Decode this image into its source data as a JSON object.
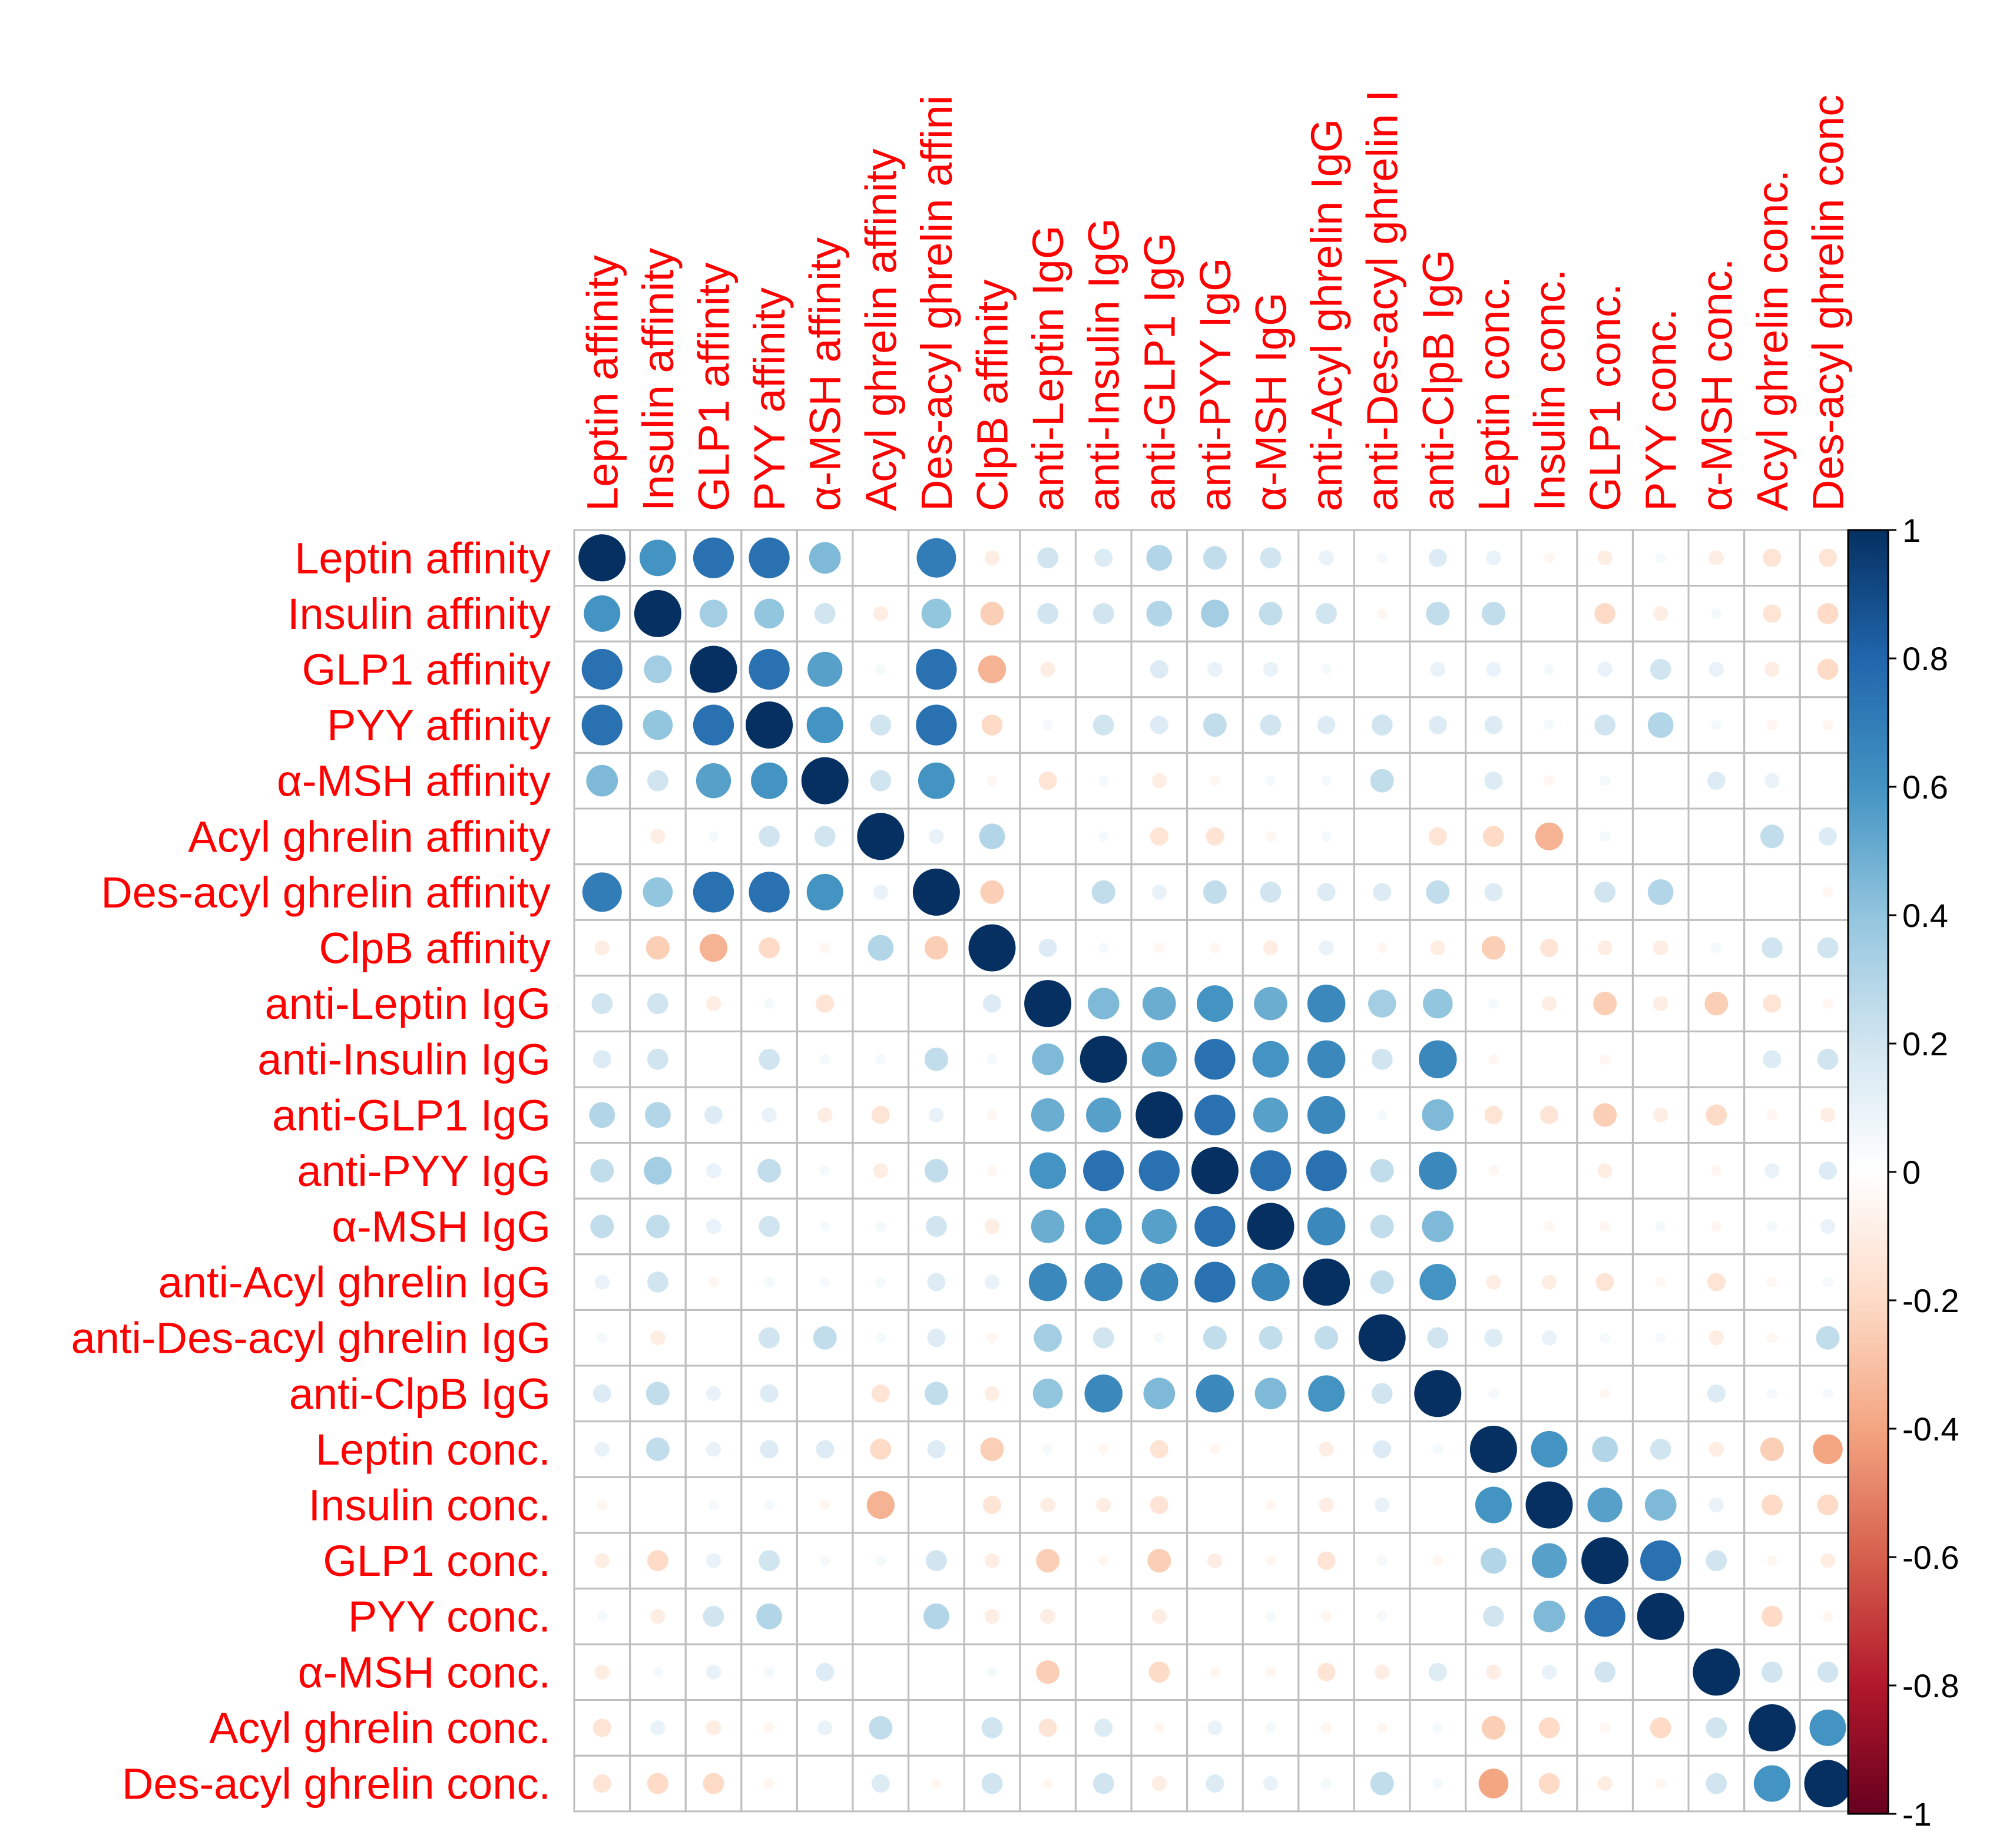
{
  "chart_data": {
    "type": "heatmap",
    "style": "correlation-circle-matrix",
    "variables": [
      "Leptin affinity",
      "Insulin affinity",
      "GLP1 affinity",
      "PYY affinity",
      "α-MSH affinity",
      "Acyl ghrelin affinity",
      "Des-acyl ghrelin affinity",
      "ClpB affinity",
      "anti-Leptin IgG",
      "anti-Insulin IgG",
      "anti-GLP1 IgG",
      "anti-PYY IgG",
      "α-MSH IgG",
      "anti-Acyl ghrelin IgG",
      "anti-Des-acyl ghrelin IgG",
      "anti-ClpB IgG",
      "Leptin conc.",
      "Insulin conc.",
      "GLP1 conc.",
      "PYY conc.",
      "α-MSH conc.",
      "Acyl ghrelin conc.",
      "Des-acyl ghrelin conc."
    ],
    "column_labels": [
      "Leptin affinity",
      "Insulin affinity",
      "GLP1 affinity",
      "PYY affinity",
      "α-MSH affinity",
      "Acyl ghrelin affinity",
      "Des-acyl ghrelin affini",
      "ClpB affinity",
      "anti-Leptin IgG",
      "anti-Insulin IgG",
      "anti-GLP1 IgG",
      "anti-PYY IgG",
      "α-MSH IgG",
      "anti-Acyl ghrelin IgG",
      "anti-Des-acyl ghrelin I",
      "anti-ClpB IgG",
      "Leptin conc.",
      "Insulin conc.",
      "GLP1 conc.",
      "PYY conc.",
      "α-MSH conc.",
      "Acyl ghrelin conc.",
      "Des-acyl ghrelin conc"
    ],
    "values": [
      [
        1,
        0.6,
        0.75,
        0.75,
        0.45,
        0,
        0.7,
        -0.1,
        0.2,
        0.15,
        0.3,
        0.25,
        0.2,
        0.1,
        0.05,
        0.15,
        0.1,
        -0.05,
        -0.1,
        0.05,
        -0.1,
        -0.15,
        -0.15
      ],
      [
        0.6,
        1,
        0.35,
        0.4,
        0.2,
        -0.1,
        0.4,
        -0.25,
        0.2,
        0.2,
        0.3,
        0.35,
        0.25,
        0.2,
        -0.05,
        0.25,
        0.25,
        0,
        -0.2,
        -0.1,
        0.05,
        -0.15,
        -0.2
      ],
      [
        0.75,
        0.35,
        1,
        0.75,
        0.55,
        0.05,
        0.75,
        -0.35,
        -0.1,
        0,
        0.15,
        0.1,
        0.1,
        0.05,
        0,
        0.1,
        0.1,
        0.05,
        0.1,
        0.2,
        0.1,
        -0.1,
        -0.2
      ],
      [
        0.75,
        0.4,
        0.75,
        1,
        0.6,
        0.2,
        0.75,
        -0.2,
        0.05,
        0.2,
        0.15,
        0.25,
        0.2,
        0.15,
        0.2,
        0.15,
        0.15,
        0.05,
        0.2,
        0.3,
        0.05,
        -0.05,
        -0.05
      ],
      [
        0.45,
        0.2,
        0.55,
        0.6,
        1,
        0.2,
        0.6,
        -0.05,
        -0.15,
        0.05,
        -0.1,
        -0.05,
        0.05,
        0.05,
        0.25,
        0,
        0.15,
        -0.05,
        0.05,
        0,
        0.15,
        0.1,
        0
      ],
      [
        0,
        -0.1,
        0.05,
        0.2,
        0.2,
        1,
        0.1,
        0.3,
        0,
        0.05,
        -0.15,
        -0.15,
        -0.05,
        0.05,
        0,
        -0.15,
        -0.2,
        -0.35,
        0.05,
        0,
        0,
        0.25,
        0.15
      ],
      [
        0.7,
        0.4,
        0.75,
        0.75,
        0.6,
        0.1,
        1,
        -0.25,
        0,
        0.25,
        0.1,
        0.25,
        0.2,
        0.15,
        0.15,
        0.25,
        0.15,
        0,
        0.2,
        0.3,
        0,
        0,
        -0.05
      ],
      [
        -0.1,
        -0.25,
        -0.35,
        -0.2,
        -0.05,
        0.3,
        -0.25,
        1,
        0.15,
        0.05,
        -0.05,
        -0.05,
        -0.1,
        0.1,
        -0.05,
        -0.1,
        -0.25,
        -0.15,
        -0.1,
        -0.1,
        0.05,
        0.2,
        0.2
      ],
      [
        0.2,
        0.2,
        -0.1,
        0.05,
        -0.15,
        0,
        0,
        0.15,
        1,
        0.45,
        0.5,
        0.6,
        0.5,
        0.65,
        0.35,
        0.4,
        0.05,
        -0.1,
        -0.25,
        -0.1,
        -0.25,
        -0.15,
        -0.05
      ],
      [
        0.15,
        0.2,
        0,
        0.2,
        0.05,
        0.05,
        0.25,
        0.05,
        0.45,
        1,
        0.55,
        0.75,
        0.6,
        0.65,
        0.2,
        0.65,
        -0.05,
        0,
        -0.05,
        0,
        0,
        0.15,
        0.2
      ],
      [
        0.3,
        0.3,
        0.15,
        0.1,
        -0.1,
        -0.15,
        0.1,
        -0.05,
        0.5,
        0.55,
        1,
        0.75,
        0.55,
        0.65,
        0.05,
        0.45,
        -0.15,
        -0.15,
        -0.25,
        -0.1,
        -0.2,
        -0.05,
        -0.1
      ],
      [
        0.25,
        0.35,
        0.1,
        0.25,
        0.05,
        -0.1,
        0.25,
        -0.05,
        0.6,
        0.75,
        0.75,
        1,
        0.75,
        0.75,
        0.25,
        0.65,
        -0.05,
        0,
        -0.1,
        0,
        -0.05,
        0.1,
        0.15
      ],
      [
        0.25,
        0.25,
        0.1,
        0.2,
        0.05,
        0.05,
        0.2,
        -0.1,
        0.5,
        0.6,
        0.55,
        0.75,
        1,
        0.65,
        0.25,
        0.45,
        0,
        -0.05,
        -0.05,
        0.05,
        -0.05,
        0.05,
        0.1
      ],
      [
        0.1,
        0.2,
        -0.05,
        0.05,
        0.05,
        0.05,
        0.15,
        0.1,
        0.65,
        0.65,
        0.65,
        0.75,
        0.65,
        1,
        0.25,
        0.6,
        -0.1,
        -0.1,
        -0.15,
        -0.05,
        -0.15,
        -0.05,
        0.05
      ],
      [
        0.05,
        -0.1,
        0,
        0.2,
        0.25,
        0.05,
        0.15,
        -0.05,
        0.35,
        0.2,
        0.05,
        0.25,
        0.25,
        0.25,
        1,
        0.2,
        0.15,
        0.1,
        0.05,
        0.05,
        -0.1,
        -0.05,
        0.25
      ],
      [
        0.15,
        0.25,
        0.1,
        0.15,
        0,
        -0.15,
        0.25,
        -0.1,
        0.4,
        0.65,
        0.45,
        0.65,
        0.45,
        0.6,
        0.2,
        1,
        0.05,
        0,
        -0.05,
        0,
        0.15,
        0.05,
        0.05
      ],
      [
        0.1,
        0.25,
        0.1,
        0.15,
        0.15,
        -0.2,
        0.15,
        -0.25,
        0.05,
        -0.05,
        -0.15,
        -0.05,
        0,
        -0.1,
        0.15,
        0.05,
        1,
        0.6,
        0.3,
        0.2,
        -0.1,
        -0.25,
        -0.4
      ],
      [
        -0.05,
        0,
        0.05,
        0.05,
        -0.05,
        -0.35,
        0,
        -0.15,
        -0.1,
        -0.1,
        -0.15,
        0,
        -0.05,
        -0.1,
        0.1,
        0,
        0.6,
        1,
        0.55,
        0.45,
        0.1,
        -0.2,
        -0.2
      ],
      [
        -0.1,
        -0.2,
        0.1,
        0.2,
        0.05,
        0.05,
        0.2,
        -0.1,
        -0.25,
        -0.05,
        -0.25,
        -0.1,
        -0.05,
        -0.15,
        0.05,
        -0.05,
        0.3,
        0.55,
        1,
        0.75,
        0.2,
        -0.05,
        -0.1
      ],
      [
        0.05,
        -0.1,
        0.2,
        0.3,
        0,
        0,
        0.3,
        -0.1,
        -0.1,
        0,
        -0.1,
        0,
        0.05,
        -0.05,
        0.05,
        0,
        0.2,
        0.45,
        0.75,
        1,
        0,
        -0.2,
        -0.05
      ],
      [
        -0.1,
        0.05,
        0.1,
        0.05,
        0.15,
        0,
        0,
        0.05,
        -0.25,
        0,
        -0.2,
        -0.05,
        -0.05,
        -0.15,
        -0.1,
        0.15,
        -0.1,
        0.1,
        0.2,
        0,
        1,
        0.2,
        0.2
      ],
      [
        -0.15,
        0.1,
        -0.1,
        -0.05,
        0.1,
        0.25,
        0,
        0.2,
        -0.15,
        0.15,
        -0.05,
        0.1,
        0.05,
        -0.05,
        -0.05,
        0.05,
        -0.25,
        -0.2,
        -0.05,
        -0.2,
        0.2,
        1,
        0.6
      ],
      [
        -0.15,
        -0.2,
        -0.2,
        -0.05,
        0,
        0.15,
        -0.05,
        0.2,
        -0.05,
        0.2,
        -0.1,
        0.15,
        0.1,
        0.05,
        0.25,
        0.05,
        -0.4,
        -0.2,
        -0.1,
        -0.05,
        0.2,
        0.6,
        1
      ]
    ],
    "colorbar": {
      "ticks": [
        "1",
        "0.8",
        "0.6",
        "0.4",
        "0.2",
        "0",
        "-0.2",
        "-0.4",
        "-0.6",
        "-0.8",
        "-1"
      ],
      "range": [
        -1,
        1
      ]
    },
    "label_color": "#ff0000",
    "grid_color": "#bebebe",
    "colors": {
      "neg_strong": "#67001f",
      "neg_mid": "#d6604d",
      "neg_light": "#fddbc7",
      "zero": "#ffffff",
      "pos_light": "#d1e5f0",
      "pos_mid": "#4393c3",
      "pos_strong": "#053061"
    }
  }
}
